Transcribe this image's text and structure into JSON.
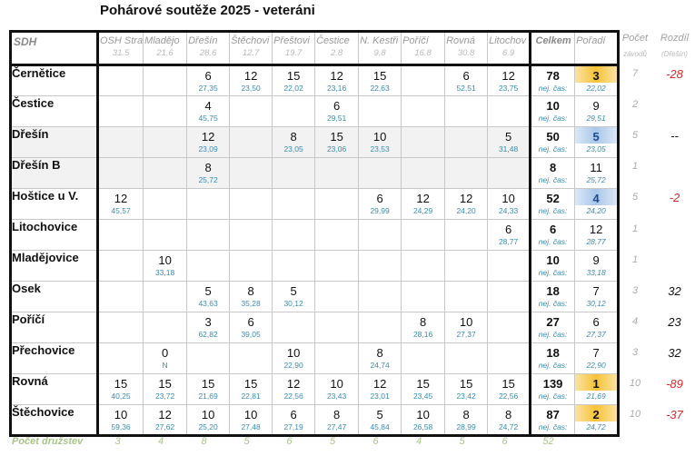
{
  "title": "Pohárové soutěže 2025 - veteráni",
  "header": {
    "sdh_label": "SDH",
    "competitions": [
      {
        "name": "OSH Stra",
        "value": "31.5"
      },
      {
        "name": "Mladějo",
        "value": "21.6"
      },
      {
        "name": "Dřešín",
        "value": "28.6"
      },
      {
        "name": "Štěchovi",
        "value": "12.7"
      },
      {
        "name": "Přeštovi",
        "value": "19.7"
      },
      {
        "name": "Čestice",
        "value": "2.8"
      },
      {
        "name": "N. Kestři",
        "value": "9.8"
      },
      {
        "name": "Poříčí",
        "value": "16.8"
      },
      {
        "name": "Rovná",
        "value": "30.8"
      },
      {
        "name": "Litochov",
        "value": "6.9"
      }
    ],
    "total_label": "Celkem",
    "rank_label": "Pořadí",
    "count_label": "Počet",
    "count_sub": "závodů",
    "diff_label": "Rozdíl",
    "diff_sub": "(Dřešín)"
  },
  "best_time_label": "nej. čas:",
  "rows": [
    {
      "team": "Černětice",
      "shade": false,
      "results": [
        null,
        null,
        {
          "p": "6",
          "t": "27,35"
        },
        {
          "p": "12",
          "t": "23,50"
        },
        {
          "p": "15",
          "t": "22,02"
        },
        {
          "p": "12",
          "t": "23,16"
        },
        {
          "p": "15",
          "t": "22,63"
        },
        null,
        {
          "p": "6",
          "t": "52,51"
        },
        {
          "p": "12",
          "t": "23,75"
        }
      ],
      "total": "78",
      "rank": "3",
      "rank_style": "gold",
      "best_time": "22,02",
      "count": "7",
      "diff": "-28"
    },
    {
      "team": "Čestice",
      "shade": false,
      "results": [
        null,
        null,
        {
          "p": "4",
          "t": "45,75"
        },
        null,
        null,
        {
          "p": "6",
          "t": "29,51"
        },
        null,
        null,
        null,
        null
      ],
      "total": "10",
      "rank": "9",
      "rank_style": "",
      "best_time": "29,51",
      "count": "2",
      "diff": ""
    },
    {
      "team": "Dřešín",
      "shade": true,
      "results": [
        null,
        null,
        {
          "p": "12",
          "t": "23,09"
        },
        null,
        {
          "p": "8",
          "t": "23,05"
        },
        {
          "p": "15",
          "t": "23,06"
        },
        {
          "p": "10",
          "t": "23,53"
        },
        null,
        null,
        {
          "p": "5",
          "t": "31,48"
        }
      ],
      "total": "50",
      "rank": "5",
      "rank_style": "blue",
      "best_time": "23,05",
      "count": "5",
      "diff": "--"
    },
    {
      "team": "Dřešín B",
      "shade": true,
      "results": [
        null,
        null,
        {
          "p": "8",
          "t": "25,72"
        },
        null,
        null,
        null,
        null,
        null,
        null,
        null
      ],
      "total": "8",
      "rank": "11",
      "rank_style": "",
      "best_time": "25,72",
      "count": "1",
      "diff": ""
    },
    {
      "team": "Hoštice u V.",
      "shade": false,
      "results": [
        {
          "p": "12",
          "t": "45,57"
        },
        null,
        null,
        null,
        null,
        null,
        {
          "p": "6",
          "t": "29,99"
        },
        {
          "p": "12",
          "t": "24,29"
        },
        {
          "p": "12",
          "t": "24,20"
        },
        {
          "p": "10",
          "t": "24,33"
        }
      ],
      "total": "52",
      "rank": "4",
      "rank_style": "blue",
      "best_time": "24,20",
      "count": "5",
      "diff": "-2"
    },
    {
      "team": "Litochovice",
      "shade": false,
      "results": [
        null,
        null,
        null,
        null,
        null,
        null,
        null,
        null,
        null,
        {
          "p": "6",
          "t": "28,77"
        }
      ],
      "total": "6",
      "rank": "12",
      "rank_style": "",
      "best_time": "28,77",
      "count": "1",
      "diff": ""
    },
    {
      "team": "Mladějovice",
      "shade": false,
      "results": [
        null,
        {
          "p": "10",
          "t": "33,18"
        },
        null,
        null,
        null,
        null,
        null,
        null,
        null,
        null
      ],
      "total": "10",
      "rank": "9",
      "rank_style": "",
      "best_time": "33,18",
      "count": "1",
      "diff": ""
    },
    {
      "team": "Osek",
      "shade": false,
      "results": [
        null,
        null,
        {
          "p": "5",
          "t": "43,63"
        },
        {
          "p": "8",
          "t": "35,28"
        },
        {
          "p": "5",
          "t": "30,12"
        },
        null,
        null,
        null,
        null,
        null
      ],
      "total": "18",
      "rank": "7",
      "rank_style": "",
      "best_time": "30,12",
      "count": "3",
      "diff": "32"
    },
    {
      "team": "Poříčí",
      "shade": false,
      "results": [
        null,
        null,
        {
          "p": "3",
          "t": "62,82"
        },
        {
          "p": "6",
          "t": "39,05"
        },
        null,
        null,
        null,
        {
          "p": "8",
          "t": "28,16"
        },
        {
          "p": "10",
          "t": "27,37"
        },
        null
      ],
      "total": "27",
      "rank": "6",
      "rank_style": "",
      "best_time": "27,37",
      "count": "4",
      "diff": "23"
    },
    {
      "team": "Přechovice",
      "shade": false,
      "results": [
        null,
        {
          "p": "0",
          "t": "N"
        },
        null,
        null,
        {
          "p": "10",
          "t": "22,90"
        },
        null,
        {
          "p": "8",
          "t": "24,74"
        },
        null,
        null,
        null
      ],
      "total": "18",
      "rank": "7",
      "rank_style": "",
      "best_time": "22,90",
      "count": "3",
      "diff": "32"
    },
    {
      "team": "Rovná",
      "shade": false,
      "results": [
        {
          "p": "15",
          "t": "40,25"
        },
        {
          "p": "15",
          "t": "23,72"
        },
        {
          "p": "15",
          "t": "21,69"
        },
        {
          "p": "15",
          "t": "22,81"
        },
        {
          "p": "12",
          "t": "22,56"
        },
        {
          "p": "10",
          "t": "23,43"
        },
        {
          "p": "12",
          "t": "23,01"
        },
        {
          "p": "15",
          "t": "23,45"
        },
        {
          "p": "15",
          "t": "23,42"
        },
        {
          "p": "15",
          "t": "22,56"
        }
      ],
      "total": "139",
      "rank": "1",
      "rank_style": "gold",
      "best_time": "21,69",
      "count": "10",
      "diff": "-89"
    },
    {
      "team": "Štěchovice",
      "shade": false,
      "results": [
        {
          "p": "10",
          "t": "59,36"
        },
        {
          "p": "12",
          "t": "27,62"
        },
        {
          "p": "10",
          "t": "25,20"
        },
        {
          "p": "10",
          "t": "27,48"
        },
        {
          "p": "6",
          "t": "27,19"
        },
        {
          "p": "8",
          "t": "27,47"
        },
        {
          "p": "5",
          "t": "45,84"
        },
        {
          "p": "10",
          "t": "26,58"
        },
        {
          "p": "8",
          "t": "28,99"
        },
        {
          "p": "8",
          "t": "24,72"
        }
      ],
      "total": "87",
      "rank": "2",
      "rank_style": "gold",
      "best_time": "24,72",
      "count": "10",
      "diff": "-37"
    }
  ],
  "footer": {
    "label": "Počet družstev",
    "counts": [
      "3",
      "4",
      "8",
      "5",
      "6",
      "5",
      "6",
      "4",
      "5",
      "6"
    ],
    "total": "52"
  },
  "colors": {
    "gold": "#f6c236",
    "blue": "#a9c7ea",
    "time_text": "#3a8bb0",
    "negative_diff": "#d42a2a",
    "footer_text": "#a9c48a"
  }
}
